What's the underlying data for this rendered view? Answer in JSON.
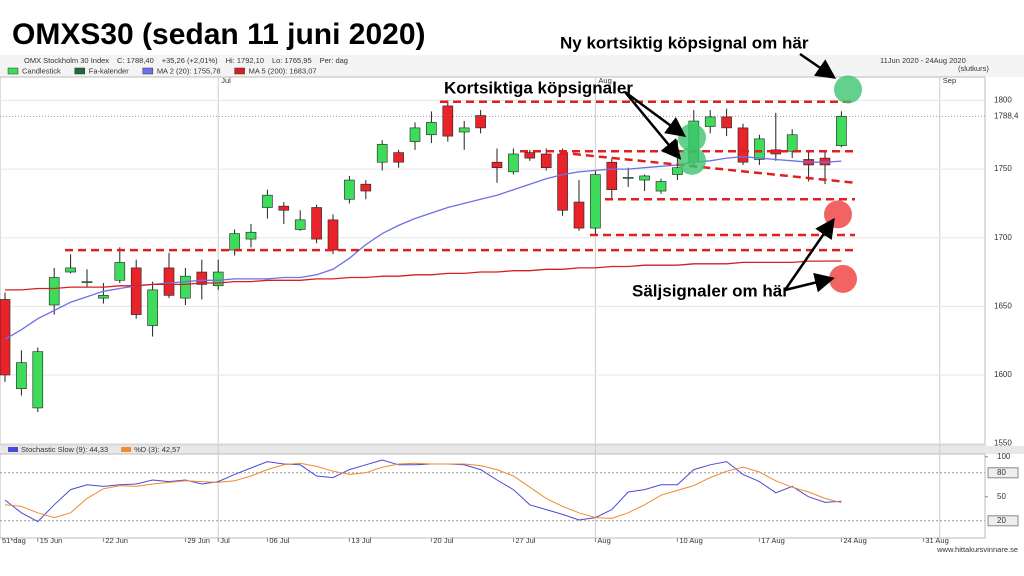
{
  "chart_data": [
    {
      "type": "candlestick",
      "title": "OMXS30 (sedan 11 juni 2020)",
      "info": [
        "OMX Stockholm 30 Index",
        "C: 1788,40",
        "+35,26 (+2,01%)",
        "Hi: 1792,10",
        "Lo: 1765,95",
        "Per: dag"
      ],
      "date_range": "11Jun 2020 - 24Aug 2020",
      "price_type": "(slutkurs)",
      "period_label": "51*dag",
      "month_markers": [
        "Jul",
        "Aug",
        "Sep"
      ],
      "categories": [
        null,
        null,
        "15 Jun",
        null,
        null,
        null,
        "22 Jun",
        null,
        null,
        null,
        null,
        "29 Jun",
        null,
        "Jul",
        null,
        null,
        "06 Jul",
        null,
        null,
        null,
        null,
        "13 Jul",
        null,
        null,
        null,
        null,
        "20 Jul",
        null,
        null,
        null,
        null,
        "27 Jul",
        null,
        null,
        null,
        null,
        "Aug",
        null,
        null,
        null,
        null,
        "10 Aug",
        null,
        null,
        null,
        null,
        "17 Aug",
        null,
        null,
        null,
        null,
        "24 Aug",
        null,
        null,
        null,
        null,
        "31 Aug"
      ],
      "series": [
        {
          "name": "Candlestick",
          "up_color": "#3ddc5a",
          "down_color": "#e8232a",
          "open": [
            1655,
            1590,
            1576,
            1651,
            1675,
            1668,
            1656,
            1669,
            1678,
            1636,
            1678,
            1656,
            1675,
            1665,
            1691,
            1699,
            1722,
            1723,
            1706,
            1722,
            1713,
            1728,
            1739,
            1755,
            1762,
            1770,
            1775,
            1796,
            1777,
            1789,
            1755,
            1748,
            1762,
            1761,
            1761,
            1726,
            1707,
            1755,
            1744,
            1742,
            1734,
            1746,
            1755,
            1781,
            1788,
            1780,
            1757,
            1764,
            1763,
            1757,
            1758,
            1767,
            null,
            null,
            null,
            null,
            null
          ],
          "high": [
            1660,
            1618,
            1620,
            1678,
            1688,
            1677,
            1667,
            1693,
            1684,
            1668,
            1689,
            1678,
            1684,
            1684,
            1706,
            1710,
            1735,
            1726,
            1720,
            1724,
            1717,
            1745,
            1742,
            1771,
            1764,
            1784,
            1792,
            1800,
            1785,
            1793,
            1765,
            1765,
            1764,
            1765,
            1765,
            1742,
            1749,
            1758,
            1751,
            1746,
            1743,
            1771,
            1793,
            1793,
            1794,
            1783,
            1775,
            1791,
            1779,
            1764,
            1764,
            1792.1,
            null,
            null,
            null,
            null,
            null
          ],
          "low": [
            1595,
            1585,
            1573,
            1644,
            1674,
            1664,
            1652,
            1667,
            1641,
            1628,
            1656,
            1651,
            1655,
            1662,
            1687,
            1693,
            1714,
            1710,
            1705,
            1696,
            1688,
            1725,
            1728,
            1749,
            1751,
            1764,
            1769,
            1770,
            1764,
            1776,
            1740,
            1746,
            1756,
            1749,
            1716,
            1705,
            1702,
            1728,
            1737,
            1734,
            1732,
            1742,
            1751,
            1776,
            1774,
            1753,
            1753,
            1756,
            1758,
            1741,
            1739,
            1765.95,
            null,
            null,
            null,
            null,
            null
          ],
          "close": [
            1600,
            1609,
            1617,
            1671,
            1678,
            1668,
            1658,
            1682,
            1644,
            1662,
            1658,
            1672,
            1666,
            1675,
            1703,
            1704,
            1731,
            1720,
            1713,
            1699,
            1691,
            1742,
            1734,
            1768,
            1755,
            1780,
            1784,
            1774,
            1780,
            1780,
            1751,
            1761,
            1758,
            1751,
            1720,
            1707,
            1746,
            1735,
            1744,
            1745,
            1741,
            1751,
            1785,
            1788,
            1780,
            1755,
            1772,
            1761,
            1775,
            1753,
            1753,
            1788.4,
            null,
            null,
            null,
            null,
            null
          ]
        },
        {
          "name": "Fa-kalender",
          "color": "#1e6b3c"
        },
        {
          "name": "MA 2 (20): 1755,78",
          "color": "#6f6fe8",
          "values": [
            1626,
            1633,
            1641,
            1647,
            1653,
            1657,
            1661,
            1663,
            1665,
            1666,
            1667,
            1668,
            1669,
            1669,
            1670,
            1670,
            1670,
            1671,
            1671,
            1673,
            1677,
            1685,
            1695,
            1703,
            1709,
            1714,
            1718,
            1722,
            1725,
            1728,
            1731,
            1735,
            1739,
            1743,
            1746,
            1748,
            1749,
            1750,
            1750,
            1751,
            1752,
            1753,
            1755,
            1756,
            1758,
            1759,
            1758,
            1757,
            1756,
            1755,
            1755,
            1755.78,
            null,
            null,
            null,
            null,
            null
          ]
        },
        {
          "name": "MA 5 (200): 1683,07",
          "color": "#d42020",
          "values": [
            1662,
            1662,
            1663,
            1663,
            1664,
            1664,
            1664,
            1665,
            1665,
            1666,
            1666,
            1666,
            1667,
            1667,
            1668,
            1668,
            1669,
            1669,
            1669,
            1670,
            1670,
            1671,
            1671,
            1672,
            1672,
            1673,
            1673,
            1674,
            1674,
            1675,
            1675,
            1676,
            1676,
            1677,
            1677,
            1678,
            1678,
            1679,
            1679,
            1680,
            1680,
            1680,
            1681,
            1681,
            1681,
            1682,
            1682,
            1682,
            1682,
            1683,
            1683,
            1683.07,
            null,
            null,
            null,
            null,
            null
          ]
        }
      ],
      "ylim": [
        1549,
        1828
      ],
      "yticks": [
        1550,
        1600,
        1650,
        1700,
        1750,
        1800
      ],
      "last_price": {
        "value": 1788.4,
        "label": "1788,4"
      },
      "signal_line_color": "#e02020",
      "signal_lines": [
        [
          1691,
          1691
        ],
        [
          1799,
          1799
        ],
        [
          1763,
          1763
        ],
        [
          1728,
          1728
        ],
        [
          1702,
          1702
        ],
        [
          1762,
          1740
        ]
      ],
      "buy_color": "#3cc46e",
      "buy_markers": [
        1808,
        1773,
        1756
      ],
      "sell_color": "#f04848",
      "sell_markers": [
        1717,
        1670
      ]
    },
    {
      "type": "line",
      "series": [
        {
          "name": "Stochastic Slow (9): 44,33",
          "color": "#4a4ad8",
          "values": [
            46,
            30,
            19,
            40,
            59,
            65,
            63,
            65,
            66,
            71,
            69,
            71,
            66,
            69,
            78,
            86,
            94,
            91,
            90,
            76,
            74,
            84,
            90,
            96,
            90,
            90,
            91,
            91,
            90,
            84,
            71,
            59,
            40,
            34,
            28,
            21,
            24,
            34,
            56,
            59,
            65,
            65,
            84,
            90,
            94,
            78,
            69,
            55,
            63,
            50,
            43,
            44.33,
            null,
            null,
            null,
            null,
            null
          ]
        },
        {
          "name": "%D (3): 42,57",
          "color": "#f08a30",
          "values": [
            40,
            38,
            30,
            24,
            30,
            48,
            60,
            64,
            63,
            66,
            68,
            70,
            69,
            68,
            70,
            76,
            84,
            90,
            92,
            88,
            82,
            78,
            80,
            87,
            91,
            92,
            91,
            91,
            91,
            89,
            84,
            76,
            62,
            48,
            38,
            30,
            24,
            23,
            30,
            40,
            52,
            58,
            64,
            74,
            82,
            87,
            81,
            70,
            62,
            56,
            48,
            42.57,
            null,
            null,
            null,
            null,
            null
          ]
        }
      ],
      "ylim": [
        -4,
        106
      ],
      "yticks": [
        20,
        50,
        80,
        100
      ],
      "reference_lines": [
        80,
        20
      ]
    }
  ],
  "annotations": {
    "new_buy": "Ny kortsiktig köpsignal om här",
    "buy": "Kortsiktiga köpsignaler",
    "sell": "Säljsignaler om här"
  },
  "footer": "www.hittakursvinnare.se"
}
